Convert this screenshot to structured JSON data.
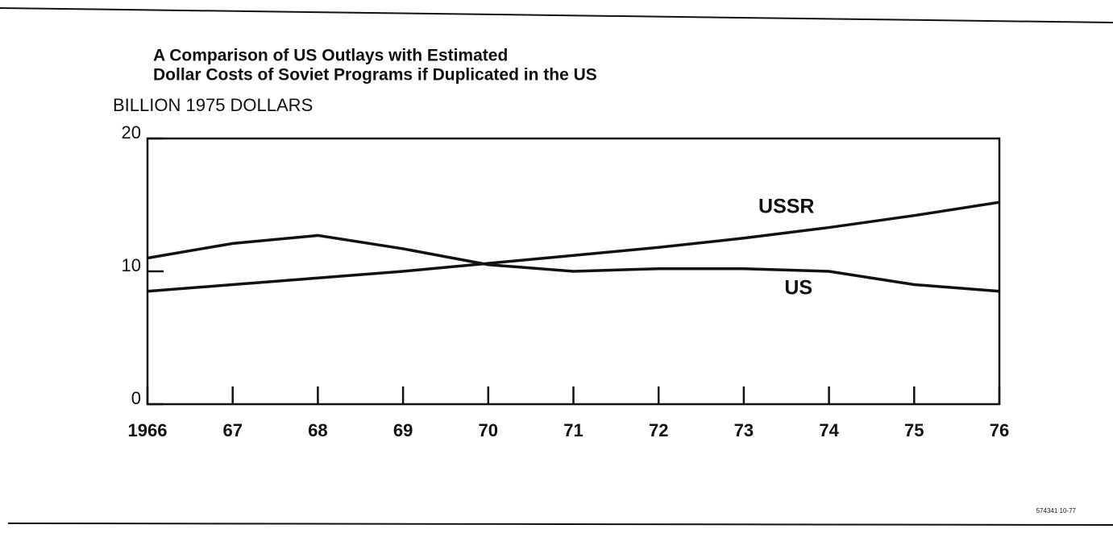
{
  "chart_data": {
    "type": "line",
    "title": [
      "A Comparison of US Outlays with Estimated",
      "Dollar Costs of Soviet Programs if Duplicated in the US"
    ],
    "ylabel": "BILLION 1975 DOLLARS",
    "categories": [
      "1966",
      "67",
      "68",
      "69",
      "70",
      "71",
      "72",
      "73",
      "74",
      "75",
      "76"
    ],
    "series": [
      {
        "name": "USSR",
        "color": "#111111",
        "values": [
          8.5,
          9.0,
          9.5,
          10.0,
          10.6,
          11.2,
          11.8,
          12.5,
          13.3,
          14.2,
          15.2
        ]
      },
      {
        "name": "US",
        "color": "#111111",
        "values": [
          11.0,
          12.1,
          12.7,
          11.7,
          10.5,
          10.0,
          10.2,
          10.2,
          10.0,
          9.0,
          8.5
        ]
      }
    ],
    "ylim": [
      0,
      20
    ],
    "yticks": [
      0,
      10,
      20
    ],
    "footnote": "574341 10-77"
  }
}
